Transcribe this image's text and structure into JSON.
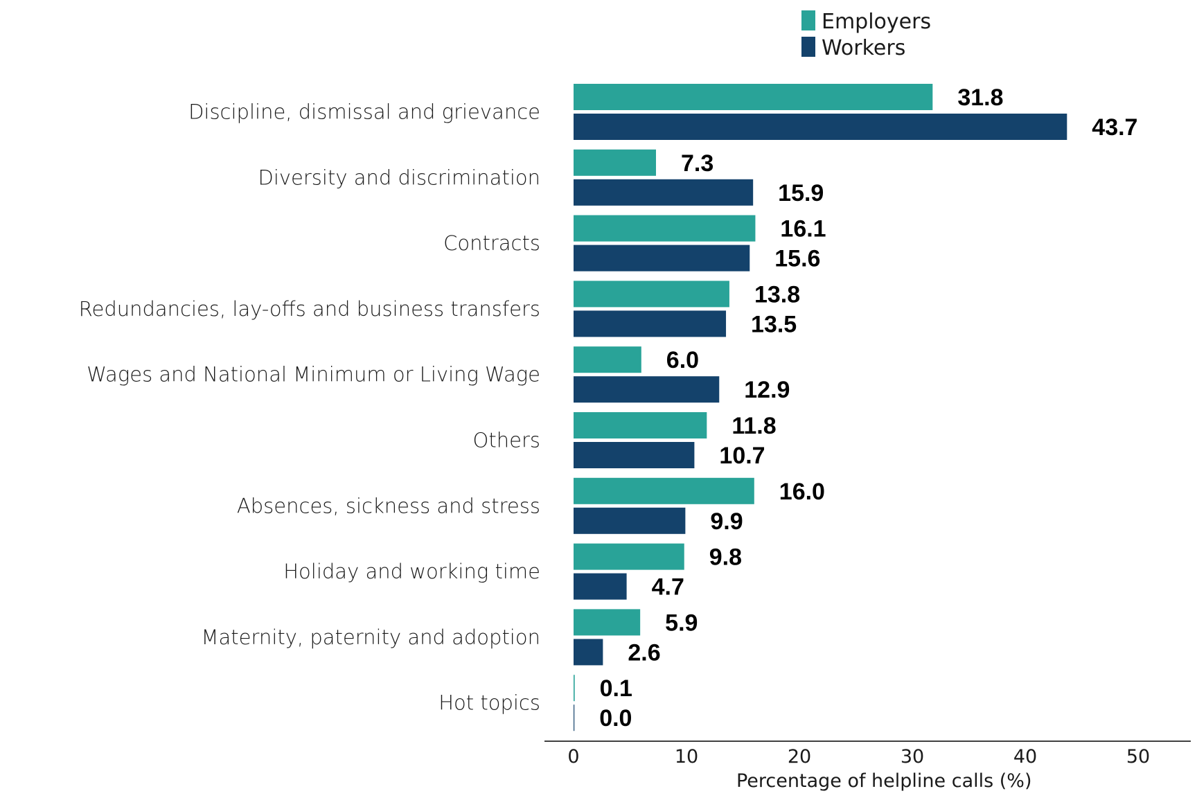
{
  "chart_data": {
    "type": "bar",
    "orientation": "horizontal",
    "title": "",
    "xlabel": "Percentage of helpline calls (%)",
    "ylabel": "",
    "xlim": [
      0,
      55
    ],
    "xticks": [
      0,
      10,
      20,
      30,
      40,
      50
    ],
    "grid": false,
    "legend_position": "top-center",
    "categories": [
      "Discipline, dismissal and grievance",
      "Diversity and discrimination",
      "Contracts",
      "Redundancies, lay-offs and business transfers",
      "Wages and National Minimum or Living Wage",
      "Others",
      "Absences, sickness and stress",
      "Holiday and working time",
      "Maternity, paternity and adoption",
      "Hot topics"
    ],
    "series": [
      {
        "name": "Employers",
        "color": "#29A398",
        "values": [
          31.8,
          7.3,
          16.1,
          13.8,
          6.0,
          11.8,
          16.0,
          9.8,
          5.9,
          0.1
        ],
        "labels": [
          "31.8",
          "7.3",
          "16.1",
          "13.8",
          "6.0",
          "11.8",
          "16.0",
          "9.8",
          "5.9",
          "0.1"
        ]
      },
      {
        "name": "Workers",
        "color": "#14426B",
        "values": [
          43.7,
          15.9,
          15.6,
          13.5,
          12.9,
          10.7,
          9.9,
          4.7,
          2.6,
          0.0
        ],
        "labels": [
          "43.7",
          "15.9",
          "15.6",
          "13.5",
          "12.9",
          "10.7",
          "9.9",
          "4.7",
          "2.6",
          "0.0"
        ]
      }
    ]
  }
}
